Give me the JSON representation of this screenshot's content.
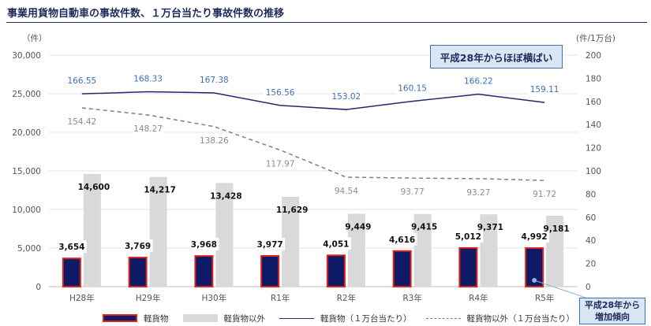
{
  "title": "事業用貨物自動車の事故件数、１万台当たり事故件数の推移",
  "callouts": {
    "top": "平成28年からほぼ横ばい",
    "bottom_line1": "平成28年から",
    "bottom_line2": "増加傾向"
  },
  "legend": {
    "bar_light_vehicle": "軽貨物",
    "bar_other": "軽貨物以外",
    "line_light_vehicle": "軽貨物（１万台当たり）",
    "line_other": "軽貨物以外（１万台当たり）"
  },
  "colors": {
    "bar_light_fill": "#0d1a66",
    "bar_light_border": "#e0201b",
    "bar_other": "#d9d9d9",
    "line_light": "#1f2a6e",
    "line_other": "#7f7f7f",
    "label_light": "#3c6fb4",
    "label_other": "#8c8c8c"
  },
  "chart_data": {
    "type": "bar",
    "categories": [
      "H28年",
      "H29年",
      "H30年",
      "R1年",
      "R2年",
      "R3年",
      "R4年",
      "R5年"
    ],
    "y_left_label": "（件）",
    "y_right_label": "(件/1万台)",
    "y_left_lim": [
      0,
      30000
    ],
    "y_left_ticks": [
      "0",
      "5,000",
      "10,000",
      "15,000",
      "20,000",
      "25,000",
      "30,000"
    ],
    "y_right_lim": [
      0,
      200
    ],
    "y_right_ticks": [
      "0",
      "20",
      "40",
      "60",
      "80",
      "100",
      "120",
      "140",
      "160",
      "180",
      "200"
    ],
    "series": [
      {
        "name": "軽貨物",
        "kind": "bar",
        "axis": "left",
        "values": [
          3654,
          3769,
          3968,
          3977,
          4051,
          4616,
          5012,
          4992
        ],
        "labels": [
          "3,654",
          "3,769",
          "3,968",
          "3,977",
          "4,051",
          "4,616",
          "5,012",
          "4,992"
        ]
      },
      {
        "name": "軽貨物以外",
        "kind": "bar",
        "axis": "left",
        "values": [
          14600,
          14217,
          13428,
          11629,
          9449,
          9415,
          9371,
          9181
        ],
        "labels": [
          "14,600",
          "14,217",
          "13,428",
          "11,629",
          "9,449",
          "9,415",
          "9,371",
          "9,181"
        ]
      },
      {
        "name": "軽貨物（１万台当たり）",
        "kind": "line",
        "axis": "right",
        "values": [
          166.55,
          168.33,
          167.38,
          156.56,
          153.02,
          160.15,
          166.22,
          159.11
        ],
        "labels": [
          "166.55",
          "168.33",
          "167.38",
          "156.56",
          "153.02",
          "160.15",
          "166.22",
          "159.11"
        ]
      },
      {
        "name": "軽貨物以外（１万台当たり）",
        "kind": "line",
        "style": "dashed",
        "axis": "right",
        "values": [
          154.42,
          148.27,
          138.26,
          117.97,
          94.54,
          93.77,
          93.27,
          91.72
        ],
        "labels": [
          "154.42",
          "148.27",
          "138.26",
          "117.97",
          "94.54",
          "93.77",
          "93.27",
          "91.72"
        ]
      }
    ]
  }
}
